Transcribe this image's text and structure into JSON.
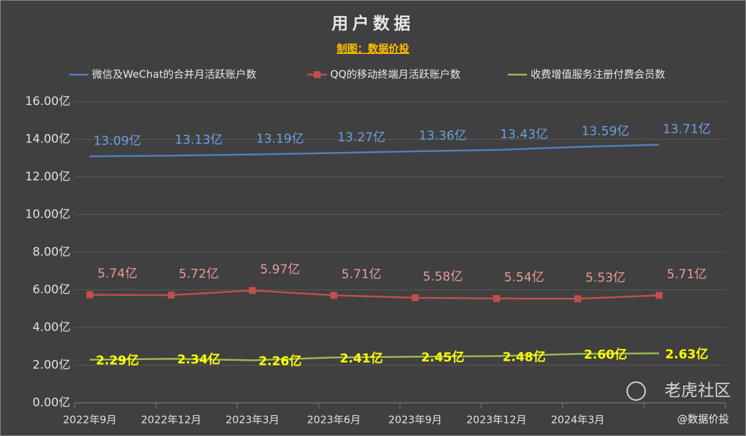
{
  "chart_data": {
    "type": "line",
    "title": "用户数据",
    "subtitle": "制图：数据价投",
    "categories": [
      "2022年9月",
      "2022年12月",
      "2023年3月",
      "2023年6月",
      "2023年9月",
      "2023年12月",
      "2024年3月",
      null
    ],
    "series": [
      {
        "name": "微信及WeChat的合并月活跃账户数",
        "color": "#4f81bd",
        "label_color": "#6a9fe0",
        "marker": false,
        "values": [
          13.09,
          13.13,
          13.19,
          13.27,
          13.36,
          13.43,
          13.59,
          13.71
        ],
        "value_labels": [
          "13.09亿",
          "13.13亿",
          "13.19亿",
          "13.27亿",
          "13.36亿",
          "13.43亿",
          "13.59亿",
          "13.71亿"
        ]
      },
      {
        "name": "QQ的移动终端月活跃账户数",
        "color": "#c0504d",
        "label_color": "#e69a98",
        "marker": true,
        "values": [
          5.74,
          5.72,
          5.97,
          5.71,
          5.58,
          5.54,
          5.53,
          5.71
        ],
        "value_labels": [
          "5.74亿",
          "5.72亿",
          "5.97亿",
          "5.71亿",
          "5.58亿",
          "5.54亿",
          "5.53亿",
          "5.71亿"
        ]
      },
      {
        "name": "收费增值服务注册付费会员数",
        "color": "#9bbb59",
        "label_color": "#ffff00",
        "marker": false,
        "values": [
          2.29,
          2.34,
          2.26,
          2.41,
          2.45,
          2.48,
          2.6,
          2.63
        ],
        "value_labels": [
          "2.29亿",
          "2.34亿",
          "2.26亿",
          "2.41亿",
          "2.45亿",
          "2.48亿",
          "2.60亿",
          "2.63亿"
        ]
      }
    ],
    "ylim": [
      0,
      16
    ],
    "yticks": [
      {
        "value": 0,
        "label": "0.00亿"
      },
      {
        "value": 2,
        "label": "2.00亿"
      },
      {
        "value": 4,
        "label": "4.00亿"
      },
      {
        "value": 6,
        "label": "6.00亿"
      },
      {
        "value": 8,
        "label": "8.00亿"
      },
      {
        "value": 10,
        "label": "10.00亿"
      },
      {
        "value": 12,
        "label": "12.00亿"
      },
      {
        "value": 14,
        "label": "14.00亿"
      },
      {
        "value": 16,
        "label": "16.00亿"
      }
    ],
    "grid": true,
    "legend": "top",
    "annotations": [
      "老虎社区",
      "@数据价投"
    ]
  }
}
